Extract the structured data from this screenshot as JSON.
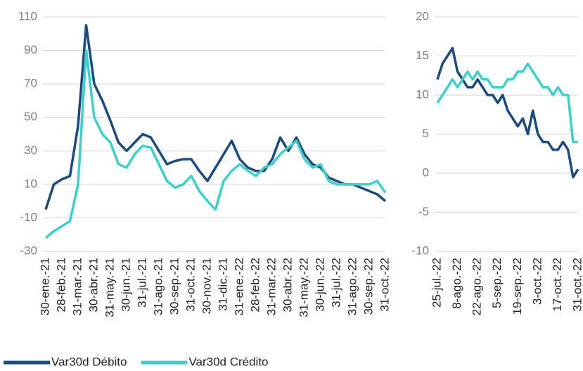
{
  "chart_data": [
    {
      "type": "line",
      "categories": [
        "30-ene.-21",
        null,
        "28-feb.-21",
        null,
        "31-mar.-21",
        null,
        "30-abr.-21",
        null,
        "31-may.-21",
        null,
        "30-jun.-21",
        null,
        "31-jul.-21",
        null,
        "31-ago.-21",
        null,
        "30-sep.-21",
        null,
        "31-oct.-21",
        null,
        "30-nov.-21",
        null,
        "31-dic.-21",
        null,
        "31-ene.-22",
        null,
        "28-feb.-22",
        null,
        "31-mar.-22",
        null,
        "30-abr.-22",
        null,
        "31-may.-22",
        null,
        "30-jun.-22",
        null,
        "31-jul.-22",
        null,
        "31-ago.-22",
        null,
        "30-sep.-22",
        null,
        "31-oct.-22"
      ],
      "series": [
        {
          "name": "Var30d Débito",
          "color": "#1b4a7c",
          "values": [
            -5,
            10,
            13,
            15,
            45,
            105,
            70,
            60,
            48,
            35,
            30,
            35,
            40,
            38,
            30,
            22,
            24,
            25,
            25,
            18,
            12,
            20,
            28,
            36,
            25,
            20,
            18,
            18,
            25,
            38,
            30,
            38,
            28,
            22,
            20,
            14,
            12,
            10,
            10,
            8,
            6,
            4,
            0
          ]
        },
        {
          "name": "Var30d Crédito",
          "color": "#3ccfcc",
          "values": [
            -22,
            -18,
            -15,
            -12,
            10,
            90,
            50,
            40,
            35,
            22,
            20,
            28,
            33,
            32,
            22,
            12,
            8,
            10,
            15,
            6,
            0,
            -5,
            12,
            18,
            22,
            18,
            15,
            20,
            22,
            28,
            32,
            36,
            25,
            20,
            22,
            12,
            10,
            10,
            10,
            10,
            10,
            12,
            5
          ]
        }
      ],
      "ylim": [
        -30,
        110
      ],
      "yticks": [
        -30,
        -10,
        10,
        30,
        50,
        70,
        90,
        110
      ],
      "grid": true
    },
    {
      "type": "line",
      "categories": [
        "25-jul.-22",
        null,
        null,
        null,
        "8-ago.-22",
        null,
        null,
        null,
        "22-ago.-22",
        null,
        null,
        null,
        "5-sep.-22",
        null,
        null,
        null,
        "19-sep.-22",
        null,
        null,
        null,
        "3-oct.-22",
        null,
        null,
        null,
        "17-oct.-22",
        null,
        null,
        null,
        "31-oct.-22"
      ],
      "series": [
        {
          "color": "#1b4a7c",
          "values": [
            12,
            14,
            15,
            16,
            13,
            12,
            11,
            11,
            12,
            11,
            10,
            10,
            9,
            10,
            8,
            7,
            6,
            7,
            5,
            8,
            5,
            4,
            4,
            3,
            3,
            4,
            3,
            -0.5,
            0.5
          ]
        },
        {
          "color": "#3ccfcc",
          "values": [
            9,
            10,
            11,
            12,
            11,
            12,
            13,
            12,
            13,
            12,
            12,
            11,
            11,
            11,
            12,
            12,
            13,
            13,
            14,
            13,
            12,
            11,
            11,
            10,
            11,
            10,
            10,
            4,
            4
          ]
        }
      ],
      "ylim": [
        -10,
        20
      ],
      "yticks": [
        -10,
        -5,
        0,
        5,
        10,
        15,
        20
      ],
      "grid": true
    }
  ]
}
